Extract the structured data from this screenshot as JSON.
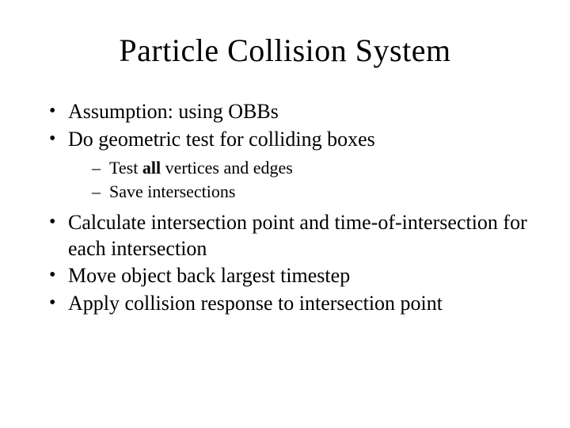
{
  "title": "Particle Collision System",
  "bullets": {
    "b0": "Assumption: using OBBs",
    "b1": "Do geometric test for colliding boxes",
    "b1_sub": {
      "s0_pre": "Test ",
      "s0_bold": "all",
      "s0_post": " vertices and edges",
      "s1": "Save intersections"
    },
    "b2": "Calculate intersection point and time-of-intersection for each intersection",
    "b3": "Move object back largest timestep",
    "b4": "Apply collision response to intersection point"
  },
  "style": {
    "background_color": "#ffffff",
    "text_color": "#000000",
    "font_family": "Times New Roman",
    "title_fontsize": 40,
    "body_fontsize": 26,
    "sub_fontsize": 22,
    "slide_width": 720,
    "slide_height": 540
  }
}
